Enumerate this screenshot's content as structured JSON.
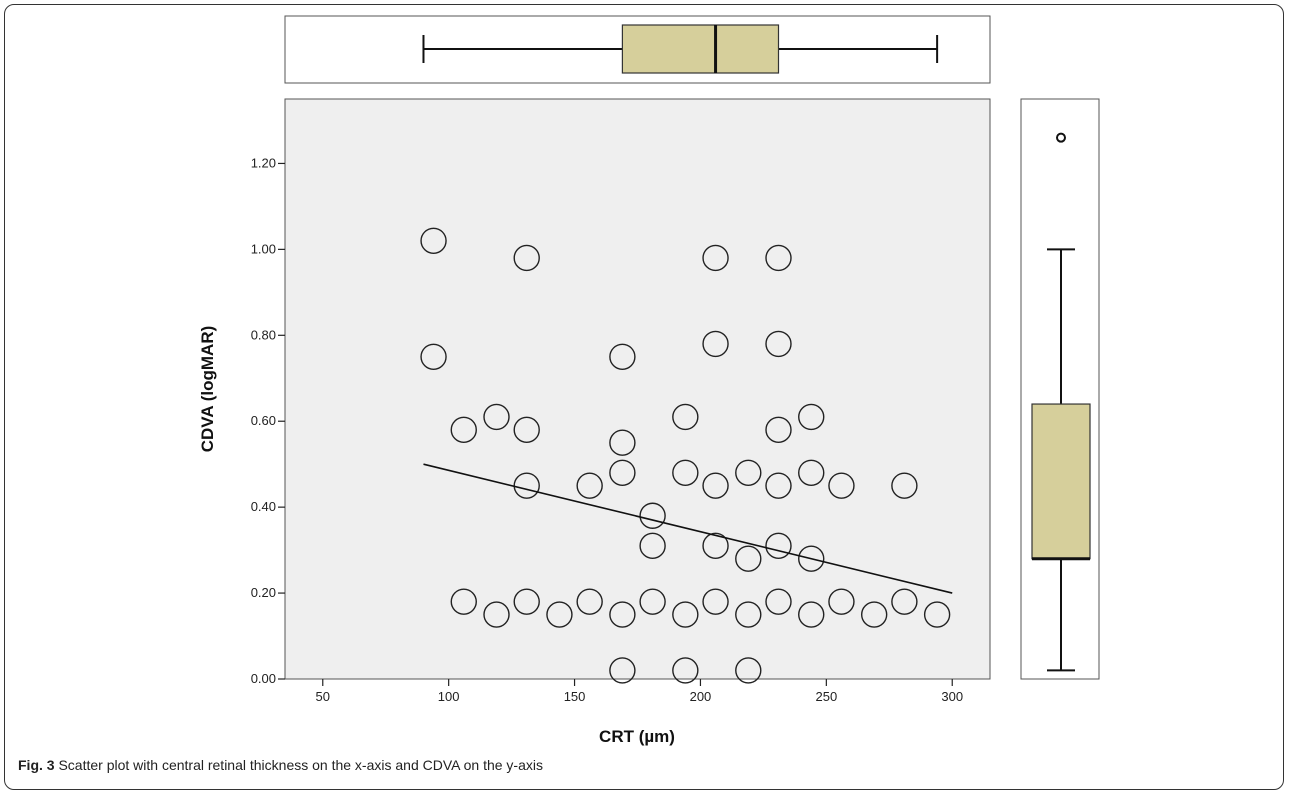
{
  "caption": {
    "label": "Fig. 3",
    "text": "Scatter plot with central retinal thickness on the x-axis and CDVA on the y-axis"
  },
  "chart_data": {
    "type": "scatter",
    "title": "",
    "xlabel": "CRT (µm)",
    "ylabel": "CDVA (logMAR)",
    "xlim": [
      35,
      315
    ],
    "ylim": [
      0.0,
      1.35
    ],
    "x_ticks": [
      50,
      100,
      150,
      200,
      250,
      300
    ],
    "x_tick_labels": [
      "50",
      "100",
      "150",
      "200",
      "250",
      "300"
    ],
    "y_ticks": [
      0.0,
      0.2,
      0.4,
      0.6,
      0.8,
      1.0,
      1.2
    ],
    "y_tick_labels": [
      "0.00",
      "0.20",
      "0.40",
      "0.60",
      "0.80",
      "1.00",
      "1.20"
    ],
    "grid": false,
    "background": "#efefef",
    "series": [
      {
        "points": [
          {
            "x": 94,
            "y": 1.02
          },
          {
            "x": 94,
            "y": 0.75
          },
          {
            "x": 131,
            "y": 0.98
          },
          {
            "x": 131,
            "y": 0.58
          },
          {
            "x": 131,
            "y": 0.45
          },
          {
            "x": 131,
            "y": 0.18
          },
          {
            "x": 106,
            "y": 0.58
          },
          {
            "x": 106,
            "y": 0.18
          },
          {
            "x": 119,
            "y": 0.61
          },
          {
            "x": 119,
            "y": 0.15
          },
          {
            "x": 144,
            "y": 0.15
          },
          {
            "x": 156,
            "y": 0.45
          },
          {
            "x": 156,
            "y": 0.18
          },
          {
            "x": 169,
            "y": 0.75
          },
          {
            "x": 169,
            "y": 0.55
          },
          {
            "x": 169,
            "y": 0.48
          },
          {
            "x": 169,
            "y": 0.15
          },
          {
            "x": 169,
            "y": 0.02
          },
          {
            "x": 181,
            "y": 0.38
          },
          {
            "x": 181,
            "y": 0.31
          },
          {
            "x": 181,
            "y": 0.18
          },
          {
            "x": 194,
            "y": 0.61
          },
          {
            "x": 194,
            "y": 0.48
          },
          {
            "x": 194,
            "y": 0.15
          },
          {
            "x": 194,
            "y": 0.02
          },
          {
            "x": 206,
            "y": 0.98
          },
          {
            "x": 206,
            "y": 0.78
          },
          {
            "x": 206,
            "y": 0.45
          },
          {
            "x": 206,
            "y": 0.31
          },
          {
            "x": 206,
            "y": 0.18
          },
          {
            "x": 219,
            "y": 0.48
          },
          {
            "x": 219,
            "y": 0.28
          },
          {
            "x": 219,
            "y": 0.15
          },
          {
            "x": 219,
            "y": 0.02
          },
          {
            "x": 231,
            "y": 0.98
          },
          {
            "x": 231,
            "y": 0.78
          },
          {
            "x": 231,
            "y": 0.58
          },
          {
            "x": 231,
            "y": 0.45
          },
          {
            "x": 231,
            "y": 0.31
          },
          {
            "x": 231,
            "y": 0.18
          },
          {
            "x": 244,
            "y": 0.61
          },
          {
            "x": 244,
            "y": 0.48
          },
          {
            "x": 244,
            "y": 0.28
          },
          {
            "x": 244,
            "y": 0.15
          },
          {
            "x": 256,
            "y": 0.45
          },
          {
            "x": 256,
            "y": 0.18
          },
          {
            "x": 269,
            "y": 0.15
          },
          {
            "x": 281,
            "y": 0.45
          },
          {
            "x": 281,
            "y": 0.18
          },
          {
            "x": 294,
            "y": 0.15
          }
        ]
      }
    ],
    "fit_line": {
      "x": [
        90,
        300
      ],
      "y": [
        0.5,
        0.2
      ]
    },
    "x_boxplot": {
      "min": 90,
      "q1": 169,
      "median": 206,
      "q3": 231,
      "max": 294,
      "fill": "#d6cf9b"
    },
    "y_boxplot": {
      "min": 0.02,
      "q1": 0.28,
      "median": 0.28,
      "q3": 0.64,
      "max": 1.0,
      "outliers": [
        1.26
      ],
      "fill": "#d6cf9b"
    }
  }
}
